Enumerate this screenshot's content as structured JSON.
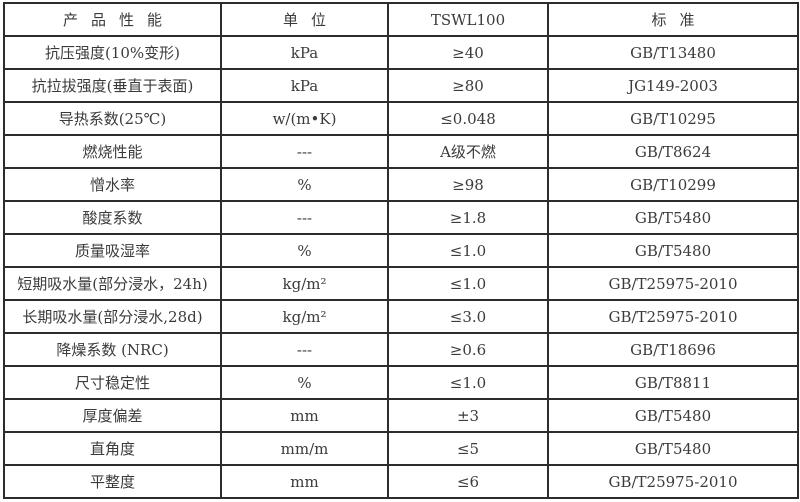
{
  "table": {
    "headers": [
      {
        "label": "产 品 性 能"
      },
      {
        "label": "单 位"
      },
      {
        "label": "TSWL100"
      },
      {
        "label": "标 准"
      }
    ],
    "rows": [
      {
        "property": "抗压强度(10%变形)",
        "unit": "kPa",
        "value": "≥40",
        "standard": "GB/T13480"
      },
      {
        "property": "抗拉拔强度(垂直于表面)",
        "unit": "kPa",
        "value": "≥80",
        "standard": "JG149-2003"
      },
      {
        "property": "导热系数(25℃)",
        "unit": "w/(m•K)",
        "value": "≤0.048",
        "standard": "GB/T10295"
      },
      {
        "property": "燃烧性能",
        "unit": "---",
        "value": "A级不燃",
        "standard": "GB/T8624"
      },
      {
        "property": "憎水率",
        "unit": "%",
        "value": "≥98",
        "standard": "GB/T10299"
      },
      {
        "property": "酸度系数",
        "unit": "---",
        "value": "≥1.8",
        "standard": "GB/T5480"
      },
      {
        "property": "质量吸湿率",
        "unit": "%",
        "value": "≤1.0",
        "standard": "GB/T5480"
      },
      {
        "property": "短期吸水量(部分浸水，24h)",
        "unit": "kg/m²",
        "value": "≤1.0",
        "standard": "GB/T25975-2010"
      },
      {
        "property": "长期吸水量(部分浸水,28d)",
        "unit": "kg/m²",
        "value": "≤3.0",
        "standard": "GB/T25975-2010"
      },
      {
        "property": "降燥系数 (NRC)",
        "unit": "---",
        "value": "≥0.6",
        "standard": "GB/T18696"
      },
      {
        "property": "尺寸稳定性",
        "unit": "%",
        "value": "≤1.0",
        "standard": "GB/T8811"
      },
      {
        "property": "厚度偏差",
        "unit": "mm",
        "value": "±3",
        "standard": "GB/T5480"
      },
      {
        "property": "直角度",
        "unit": "mm/m",
        "value": "≤5",
        "standard": "GB/T5480"
      },
      {
        "property": "平整度",
        "unit": "mm",
        "value": "≤6",
        "standard": "GB/T25975-2010"
      }
    ]
  },
  "colors": {
    "border": "#2c2c2c",
    "text": "#3b3b3b",
    "background": "#ffffff"
  }
}
